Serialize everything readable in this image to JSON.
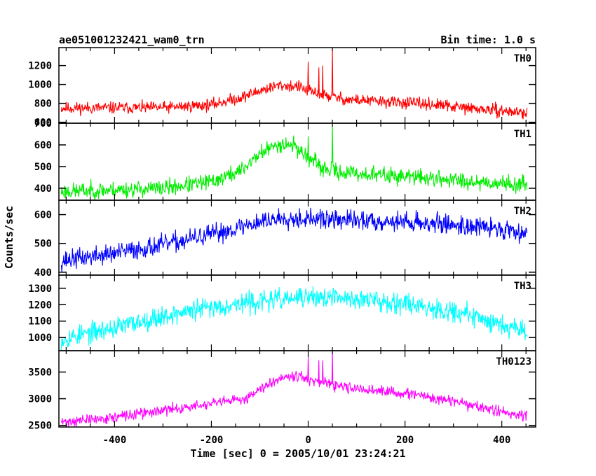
{
  "header": {
    "obs_id": "ae051001232421_wam0_trn",
    "bin_time": "Bin time: 1.0 s"
  },
  "chart_data": {
    "type": "line",
    "xlabel": "Time [sec] 0 = 2005/10/01 23:24:21",
    "ylabel": "Counts/sec",
    "xlim": [
      -515,
      470
    ],
    "x_ticks": [
      -400,
      -200,
      0,
      200,
      400
    ],
    "panels": [
      {
        "name": "TH0",
        "color": "#ff0000",
        "ylim": [
          590,
          1390
        ],
        "y_ticks": [
          600,
          800,
          1000,
          1200
        ],
        "noise": 70,
        "seed": 11,
        "baseline": [
          [
            -510,
            750
          ],
          [
            -300,
            755
          ],
          [
            -200,
            785
          ],
          [
            -140,
            860
          ],
          [
            -90,
            950
          ],
          [
            -60,
            990
          ],
          [
            -20,
            980
          ],
          [
            0,
            930
          ],
          [
            40,
            880
          ],
          [
            80,
            840
          ],
          [
            150,
            820
          ],
          [
            250,
            790
          ],
          [
            350,
            740
          ],
          [
            450,
            700
          ]
        ],
        "spikes": [
          [
            0,
            1240
          ],
          [
            22,
            1180
          ],
          [
            30,
            1200
          ],
          [
            50,
            1390
          ]
        ]
      },
      {
        "name": "TH1",
        "color": "#00ee00",
        "ylim": [
          345,
          700
        ],
        "y_ticks": [
          400,
          500,
          600,
          700
        ],
        "noise": 42,
        "seed": 23,
        "baseline": [
          [
            -510,
            385
          ],
          [
            -300,
            400
          ],
          [
            -200,
            430
          ],
          [
            -140,
            480
          ],
          [
            -100,
            560
          ],
          [
            -60,
            605
          ],
          [
            -30,
            600
          ],
          [
            -5,
            550
          ],
          [
            30,
            490
          ],
          [
            80,
            470
          ],
          [
            200,
            455
          ],
          [
            320,
            435
          ],
          [
            450,
            415
          ]
        ],
        "spikes": [
          [
            0,
            640
          ],
          [
            50,
            700
          ]
        ]
      },
      {
        "name": "TH2",
        "color": "#0000ff",
        "ylim": [
          390,
          650
        ],
        "y_ticks": [
          400,
          500,
          600
        ],
        "noise": 38,
        "seed": 37,
        "baseline": [
          [
            -510,
            440
          ],
          [
            -400,
            465
          ],
          [
            -300,
            495
          ],
          [
            -200,
            530
          ],
          [
            -100,
            575
          ],
          [
            -50,
            590
          ],
          [
            0,
            585
          ],
          [
            100,
            580
          ],
          [
            200,
            575
          ],
          [
            300,
            565
          ],
          [
            400,
            550
          ],
          [
            450,
            540
          ]
        ],
        "spikes": []
      },
      {
        "name": "TH3",
        "color": "#00ffff",
        "ylim": [
          920,
          1380
        ],
        "y_ticks": [
          1000,
          1100,
          1200,
          1300
        ],
        "noise": 70,
        "seed": 53,
        "baseline": [
          [
            -510,
            990
          ],
          [
            -400,
            1060
          ],
          [
            -300,
            1130
          ],
          [
            -200,
            1185
          ],
          [
            -100,
            1220
          ],
          [
            0,
            1245
          ],
          [
            100,
            1235
          ],
          [
            200,
            1210
          ],
          [
            300,
            1160
          ],
          [
            400,
            1080
          ],
          [
            450,
            1050
          ]
        ],
        "spikes": []
      },
      {
        "name": "TH0123",
        "color": "#ff00ff",
        "ylim": [
          2470,
          3900
        ],
        "y_ticks": [
          2500,
          3000,
          3500
        ],
        "noise": 110,
        "seed": 71,
        "baseline": [
          [
            -510,
            2560
          ],
          [
            -400,
            2650
          ],
          [
            -300,
            2780
          ],
          [
            -200,
            2900
          ],
          [
            -130,
            3000
          ],
          [
            -90,
            3250
          ],
          [
            -50,
            3420
          ],
          [
            -20,
            3440
          ],
          [
            0,
            3350
          ],
          [
            50,
            3250
          ],
          [
            100,
            3180
          ],
          [
            200,
            3100
          ],
          [
            300,
            2950
          ],
          [
            400,
            2750
          ],
          [
            450,
            2680
          ]
        ],
        "spikes": [
          [
            0,
            3780
          ],
          [
            22,
            3720
          ],
          [
            30,
            3720
          ],
          [
            50,
            3900
          ]
        ]
      }
    ]
  }
}
